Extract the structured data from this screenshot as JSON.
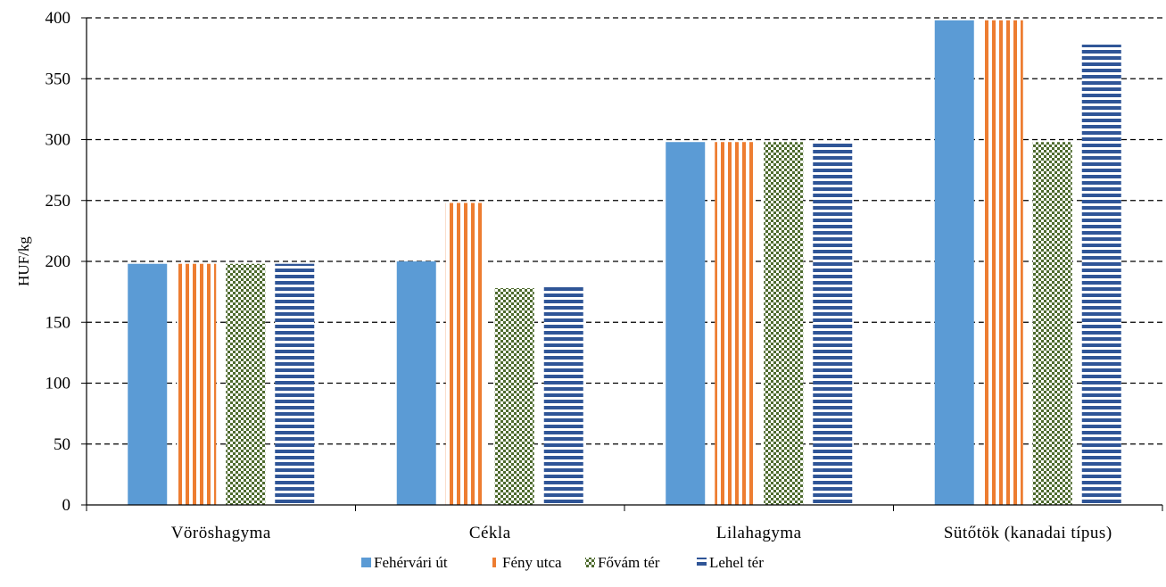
{
  "chart_data": {
    "type": "bar",
    "title": "",
    "xlabel": "",
    "ylabel": "HUF/kg",
    "ylim": [
      0,
      400
    ],
    "yticks": [
      0,
      50,
      100,
      150,
      200,
      250,
      300,
      350,
      400
    ],
    "grid": "horizontal dashed",
    "legend_position": "bottom",
    "categories": [
      "Vöröshagyma",
      "Cékla",
      "Lilahagyma",
      "Sütőtök (kanadai típus)"
    ],
    "series": [
      {
        "name": "Fehérvári út",
        "values": [
          198,
          200,
          298,
          398
        ],
        "color": "#5b9bd5",
        "pattern": "solid"
      },
      {
        "name": "Fény utca",
        "values": [
          198,
          248,
          298,
          398
        ],
        "color": "#ed7d31",
        "pattern": "vertical-stripes"
      },
      {
        "name": "Fővám tér",
        "values": [
          198,
          178,
          298,
          298
        ],
        "color": "#4e6b2e",
        "pattern": "checkerboard"
      },
      {
        "name": "Lehel tér",
        "values": [
          198,
          180,
          298,
          378
        ],
        "color": "#2f5597",
        "pattern": "horizontal-stripes"
      }
    ]
  }
}
